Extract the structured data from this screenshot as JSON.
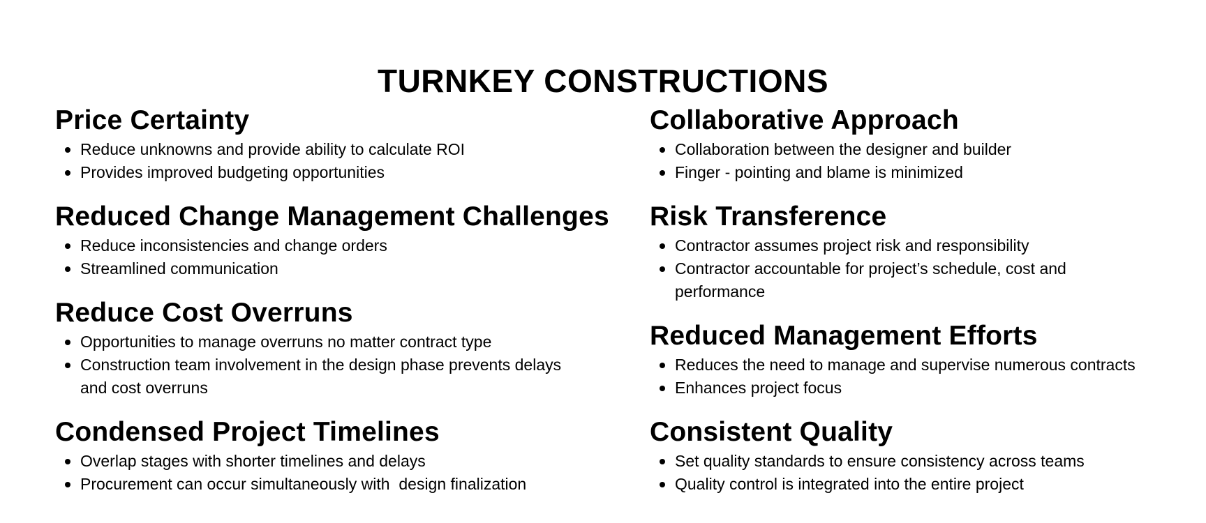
{
  "title": "TURNKEY CONSTRUCTIONS",
  "left_column": [
    {
      "heading": "Price Certainty",
      "bullets": [
        "Reduce unknowns and provide ability to calculate ROI",
        "Provides improved budgeting opportunities"
      ]
    },
    {
      "heading": "Reduced Change Management Challenges",
      "bullets": [
        "Reduce inconsistencies and change orders",
        "Streamlined communication"
      ]
    },
    {
      "heading": "Reduce Cost Overruns",
      "bullets": [
        "Opportunities to manage overruns no matter contract type",
        "Construction team involvement in the design phase prevents delays and cost overruns"
      ]
    },
    {
      "heading": "Condensed Project Timelines",
      "bullets": [
        "Overlap stages with shorter timelines and delays",
        "Procurement can occur simultaneously with  design finalization"
      ]
    }
  ],
  "right_column": [
    {
      "heading": "Collaborative Approach",
      "bullets": [
        "Collaboration between the designer and builder",
        "Finger - pointing and blame is minimized"
      ]
    },
    {
      "heading": "Risk Transference",
      "bullets": [
        "Contractor assumes project risk and responsibility",
        "Contractor accountable for project’s schedule, cost and performance"
      ]
    },
    {
      "heading": "Reduced Management Efforts",
      "bullets": [
        "Reduces the need to manage and supervise numerous contracts",
        "Enhances project focus"
      ]
    },
    {
      "heading": "Consistent Quality",
      "bullets": [
        "Set quality standards to ensure consistency across teams",
        "Quality control is integrated into the entire project"
      ]
    }
  ]
}
